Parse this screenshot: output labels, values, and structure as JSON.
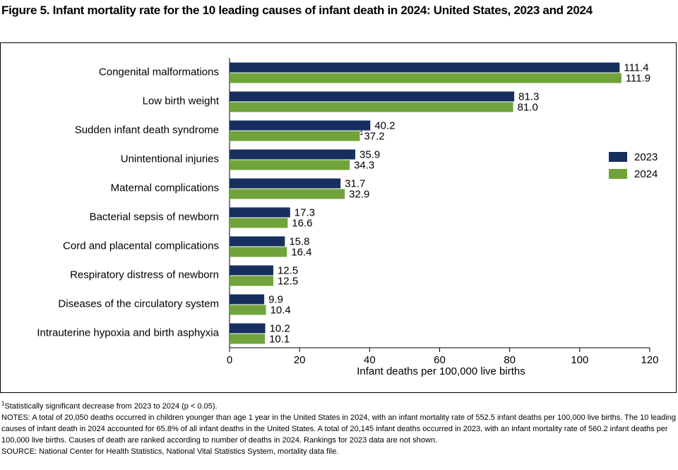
{
  "chart_data": {
    "type": "hbar",
    "title": "Figure 5. Infant mortality rate for the 10 leading causes of infant death in 2024: United States, 2023 and 2024",
    "categories": [
      "Congenital malformations",
      "Low birth weight",
      "Sudden infant death syndrome",
      "Unintentional injuries",
      "Maternal complications",
      "Bacterial sepsis of newborn",
      "Cord and placental complications",
      "Respiratory distress of newborn",
      "Diseases of the circulatory system",
      "Intrauterine hypoxia and birth asphyxia"
    ],
    "series": [
      {
        "name": "2023",
        "color": "#162f5f",
        "values": [
          111.4,
          81.3,
          40.2,
          35.9,
          31.7,
          17.3,
          15.8,
          12.5,
          9.9,
          10.2
        ],
        "value_labels": [
          "111.4",
          "81.3",
          "40.2",
          "35.9",
          "31.7",
          "17.3",
          "15.8",
          "12.5",
          "9.9",
          "10.2"
        ]
      },
      {
        "name": "2024",
        "color": "#70a33a",
        "values": [
          111.9,
          81.0,
          37.2,
          34.3,
          32.9,
          16.6,
          16.4,
          12.5,
          10.4,
          10.1
        ],
        "value_labels": [
          "111.9",
          "81.0",
          "37.2",
          "34.3",
          "32.9",
          "16.6",
          "16.4",
          "12.5",
          "10.4",
          "10.1"
        ]
      }
    ],
    "annotations": [
      {
        "text": "1",
        "category": "Sudden infant death syndrome",
        "series": "2024"
      }
    ],
    "xlabel": "Infant deaths per 100,000 live births",
    "xlim": [
      0,
      120
    ],
    "xticks": [
      0,
      20,
      40,
      60,
      80,
      100,
      120
    ],
    "grid": false,
    "legend": "right",
    "footnote": {
      "marker": "1",
      "text": "Statistically significant decrease from 2023 to 2024 (p < 0.05)."
    },
    "notes": "NOTES: A total of 20,050 deaths occurred in children younger than age 1 year in the United States in 2024, with an infant mortality rate of 552.5 infant deaths per 100,000 live births. The 10 leading causes of infant death in 2024 accounted for 65.8% of all infant deaths in the United States. A total of 20,145 infant deaths occurred in 2023, with an infant mortality rate of 560.2 infant deaths per 100,000 live births. Causes of death are ranked according to number of deaths in 2024. Rankings for 2023 data are not shown.",
    "source": "SOURCE: National Center for Health Statistics, National Vital Statistics System, mortality data file."
  }
}
